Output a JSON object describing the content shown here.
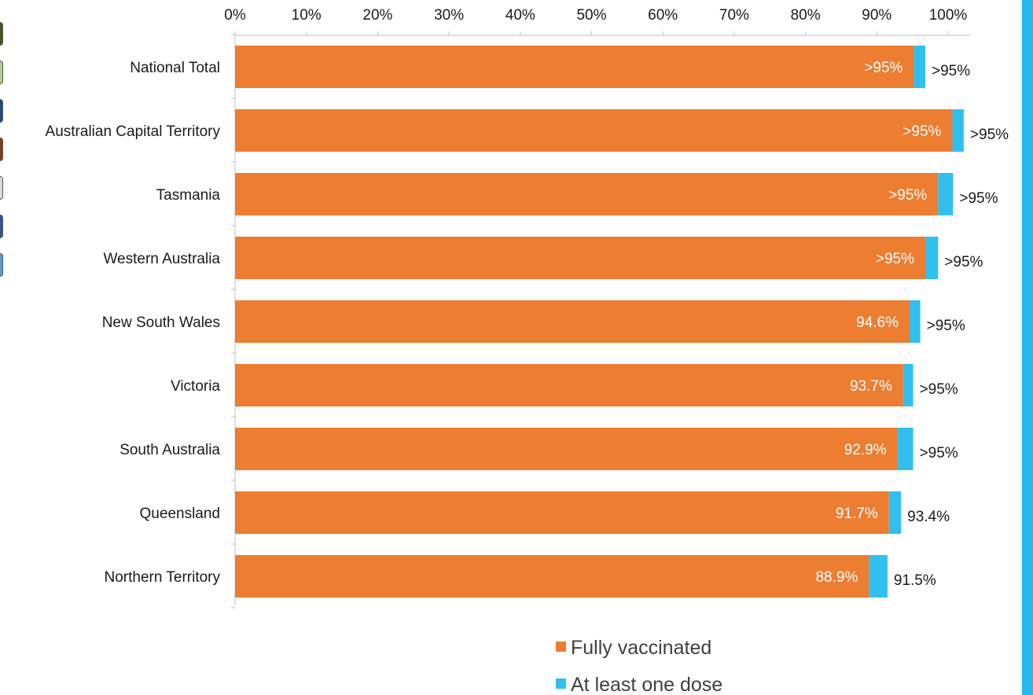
{
  "chart_data": {
    "type": "bar",
    "orientation": "horizontal",
    "stacked": true,
    "categories": [
      "National Total",
      "Australian Capital Territory",
      "Tasmania",
      "Western Australia",
      "New South Wales",
      "Victoria",
      "South Australia",
      "Queensland",
      "Northern Territory"
    ],
    "series": [
      {
        "name": "Fully vaccinated",
        "color": "#ed7d31",
        "values": [
          95.2,
          100.6,
          98.6,
          96.8,
          94.6,
          93.7,
          92.9,
          91.7,
          88.9
        ],
        "labels": [
          ">95%",
          ">95%",
          ">95%",
          ">95%",
          "94.6%",
          "93.7%",
          "92.9%",
          "91.7%",
          "88.9%"
        ]
      },
      {
        "name": "At least one dose",
        "color": "#31bff0",
        "values": [
          1.6,
          1.6,
          2.1,
          1.8,
          1.5,
          1.4,
          2.2,
          1.7,
          2.6
        ],
        "labels": [
          ">95%",
          ">95%",
          ">95%",
          ">95%",
          ">95%",
          ">95%",
          ">95%",
          "93.4%",
          "91.5%"
        ]
      }
    ],
    "xticks": [
      "0%",
      "10%",
      "20%",
      "30%",
      "40%",
      "50%",
      "60%",
      "70%",
      "80%",
      "90%",
      "100%"
    ],
    "xlim": [
      0,
      100
    ],
    "xaxis_position": "top",
    "grid": false,
    "legend_position": "bottom",
    "title": "",
    "xlabel": "",
    "ylabel": ""
  },
  "decor": {
    "stub_colors": [
      "#3d5a1e",
      "#a9d08e",
      "#1f4e79",
      "#843c0c",
      "#d9d9d9",
      "#2f5597",
      "#5b9bd5"
    ]
  }
}
